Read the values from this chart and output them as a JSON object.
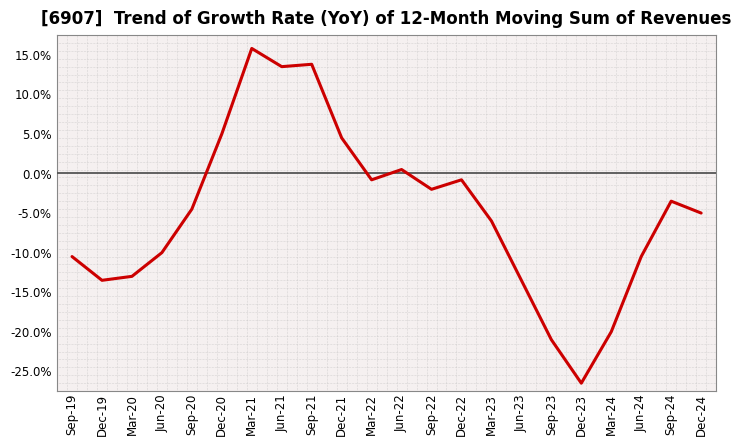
{
  "title": "[6907]  Trend of Growth Rate (YoY) of 12-Month Moving Sum of Revenues",
  "line_color": "#cc0000",
  "background_color": "#ffffff",
  "plot_bg_color": "#f5f0f0",
  "grid_color": "#bbbbbb",
  "zero_line_color": "#555555",
  "x_labels": [
    "Sep-19",
    "Dec-19",
    "Mar-20",
    "Jun-20",
    "Sep-20",
    "Dec-20",
    "Mar-21",
    "Jun-21",
    "Sep-21",
    "Dec-21",
    "Mar-22",
    "Jun-22",
    "Sep-22",
    "Dec-22",
    "Mar-23",
    "Jun-23",
    "Sep-23",
    "Dec-23",
    "Mar-24",
    "Jun-24",
    "Sep-24",
    "Dec-24"
  ],
  "y_values": [
    -10.5,
    -13.5,
    -13.0,
    -10.0,
    -4.5,
    5.0,
    15.8,
    13.5,
    13.8,
    4.5,
    -0.8,
    0.5,
    -2.0,
    -0.8,
    -6.0,
    -13.5,
    -21.0,
    -26.5,
    -20.0,
    -10.5,
    -3.5,
    -5.0
  ],
  "ylim": [
    -27.5,
    17.5
  ],
  "yticks": [
    -25.0,
    -20.0,
    -15.0,
    -10.0,
    -5.0,
    0.0,
    5.0,
    10.0,
    15.0
  ],
  "title_fontsize": 12,
  "tick_fontsize": 8.5,
  "line_width": 2.2,
  "grid_minor_count": 4
}
